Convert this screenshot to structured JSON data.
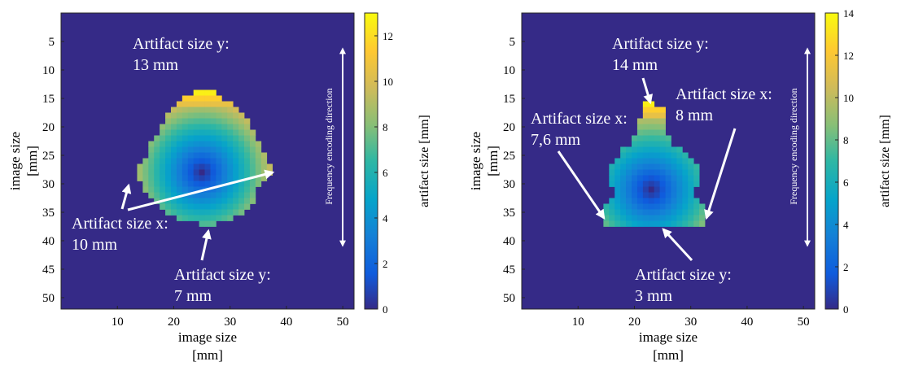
{
  "figure": {
    "description_note": "",
    "panels": [
      {
        "xlabel": [
          "image size",
          "[mm]"
        ],
        "ylabel": [
          "image size",
          "[mm]"
        ],
        "colorbar_label": "artifact size  [mm]",
        "direction_label": "Frequency encoding direction",
        "annotations": [
          {
            "lines": [
              "Artifact size y:",
              "13 mm"
            ]
          },
          {
            "lines": [
              "Artifact size x:",
              "10 mm"
            ]
          },
          {
            "lines": [
              "Artifact size y:",
              "7 mm"
            ]
          }
        ]
      },
      {
        "xlabel": [
          "image size",
          "[mm]"
        ],
        "ylabel": [
          "image size",
          "[mm]"
        ],
        "colorbar_label": "artifact size  [mm]",
        "direction_label": "Frequency encoding direction",
        "annotations": [
          {
            "lines": [
              "Artifact size y:",
              "14 mm"
            ]
          },
          {
            "lines": [
              "Artifact size x:",
              "8 mm"
            ]
          },
          {
            "lines": [
              "Artifact size x:",
              "7,6 mm"
            ]
          },
          {
            "lines": [
              "Artifact size y:",
              "3 mm"
            ]
          }
        ]
      }
    ]
  },
  "chart_data": [
    {
      "type": "heatmap",
      "title": "",
      "xlabel": "image size [mm]",
      "ylabel": "image size [mm]",
      "xlim": [
        0,
        52
      ],
      "ylim": [
        52,
        0
      ],
      "xticks": [
        10,
        20,
        30,
        40,
        50
      ],
      "yticks": [
        5,
        10,
        15,
        20,
        25,
        30,
        35,
        40,
        45,
        50
      ],
      "colorbar": {
        "label": "artifact size  [mm]",
        "range": [
          0,
          13
        ],
        "ticks": [
          0,
          2,
          4,
          6,
          8,
          10,
          12
        ]
      },
      "colormap": [
        "#352a87",
        "#0f5cdd",
        "#1481d6",
        "#06a4ca",
        "#2eb7a4",
        "#87bf77",
        "#d1bb59",
        "#fec832",
        "#f9fb0e"
      ],
      "background_value": 0,
      "artifact_region": {
        "center": [
          25,
          28
        ],
        "rows": [
          {
            "y": 14,
            "x": [
              24,
              27
            ]
          },
          {
            "y": 15,
            "x": [
              22,
              28
            ]
          },
          {
            "y": 16,
            "x": [
              21,
              30
            ]
          },
          {
            "y": 17,
            "x": [
              20,
              31
            ]
          },
          {
            "y": 18,
            "x": [
              19,
              32
            ]
          },
          {
            "y": 19,
            "x": [
              19,
              33
            ]
          },
          {
            "y": 20,
            "x": [
              18,
              33
            ]
          },
          {
            "y": 21,
            "x": [
              18,
              34
            ]
          },
          {
            "y": 22,
            "x": [
              17,
              34
            ]
          },
          {
            "y": 23,
            "x": [
              16,
              35
            ]
          },
          {
            "y": 24,
            "x": [
              16,
              35
            ]
          },
          {
            "y": 25,
            "x": [
              16,
              36
            ]
          },
          {
            "y": 26,
            "x": [
              15,
              36
            ]
          },
          {
            "y": 27,
            "x": [
              14,
              37
            ]
          },
          {
            "y": 28,
            "x": [
              14,
              37
            ]
          },
          {
            "y": 29,
            "x": [
              14,
              36
            ]
          },
          {
            "y": 30,
            "x": [
              15,
              35
            ]
          },
          {
            "y": 31,
            "x": [
              15,
              34
            ]
          },
          {
            "y": 32,
            "x": [
              16,
              34
            ]
          },
          {
            "y": 33,
            "x": [
              17,
              34
            ]
          },
          {
            "y": 34,
            "x": [
              18,
              33
            ]
          },
          {
            "y": 35,
            "x": [
              19,
              32
            ]
          },
          {
            "y": 36,
            "x": [
              21,
              30
            ]
          },
          {
            "y": 37,
            "x": [
              25,
              27
            ]
          }
        ]
      },
      "annotations": [
        {
          "text": "Artifact size y: 13 mm"
        },
        {
          "text": "Artifact size x: 10 mm"
        },
        {
          "text": "Artifact size y: 7 mm"
        },
        {
          "text": "Frequency encoding direction"
        }
      ]
    },
    {
      "type": "heatmap",
      "title": "",
      "xlabel": "image size [mm]",
      "ylabel": "image size [mm]",
      "xlim": [
        0,
        52
      ],
      "ylim": [
        52,
        0
      ],
      "xticks": [
        10,
        20,
        30,
        40,
        50
      ],
      "yticks": [
        5,
        10,
        15,
        20,
        25,
        30,
        35,
        40,
        45,
        50
      ],
      "colorbar": {
        "label": "artifact size  [mm]",
        "range": [
          0,
          14
        ],
        "ticks": [
          0,
          2,
          4,
          6,
          8,
          10,
          12,
          14
        ]
      },
      "colormap": [
        "#352a87",
        "#0f5cdd",
        "#1481d6",
        "#06a4ca",
        "#2eb7a4",
        "#87bf77",
        "#d1bb59",
        "#fec832",
        "#f9fb0e"
      ],
      "background_value": 0,
      "artifact_region": {
        "center": [
          23,
          31
        ],
        "rows": [
          {
            "y": 16,
            "x": [
              22,
              23
            ]
          },
          {
            "y": 17,
            "x": [
              22,
              25
            ]
          },
          {
            "y": 18,
            "x": [
              22,
              25
            ]
          },
          {
            "y": 19,
            "x": [
              21,
              25
            ]
          },
          {
            "y": 20,
            "x": [
              21,
              25
            ]
          },
          {
            "y": 21,
            "x": [
              21,
              25
            ]
          },
          {
            "y": 22,
            "x": [
              20,
              26
            ]
          },
          {
            "y": 23,
            "x": [
              20,
              26
            ]
          },
          {
            "y": 24,
            "x": [
              18,
              28
            ]
          },
          {
            "y": 25,
            "x": [
              18,
              29
            ]
          },
          {
            "y": 26,
            "x": [
              17,
              30
            ]
          },
          {
            "y": 27,
            "x": [
              16,
              31
            ]
          },
          {
            "y": 28,
            "x": [
              16,
              31
            ]
          },
          {
            "y": 29,
            "x": [
              16,
              31
            ]
          },
          {
            "y": 30,
            "x": [
              16,
              31
            ]
          },
          {
            "y": 31,
            "x": [
              17,
              30
            ]
          },
          {
            "y": 32,
            "x": [
              17,
              30
            ]
          },
          {
            "y": 33,
            "x": [
              16,
              31
            ]
          },
          {
            "y": 34,
            "x": [
              15,
              32
            ]
          },
          {
            "y": 35,
            "x": [
              15,
              32
            ]
          },
          {
            "y": 36,
            "x": [
              15,
              32
            ]
          },
          {
            "y": 37,
            "x": [
              15,
              32
            ]
          }
        ]
      },
      "annotations": [
        {
          "text": "Artifact size y: 14 mm"
        },
        {
          "text": "Artifact size x: 8 mm"
        },
        {
          "text": "Artifact size x: 7,6 mm"
        },
        {
          "text": "Artifact size y: 3 mm"
        },
        {
          "text": "Frequency encoding direction"
        }
      ]
    }
  ]
}
